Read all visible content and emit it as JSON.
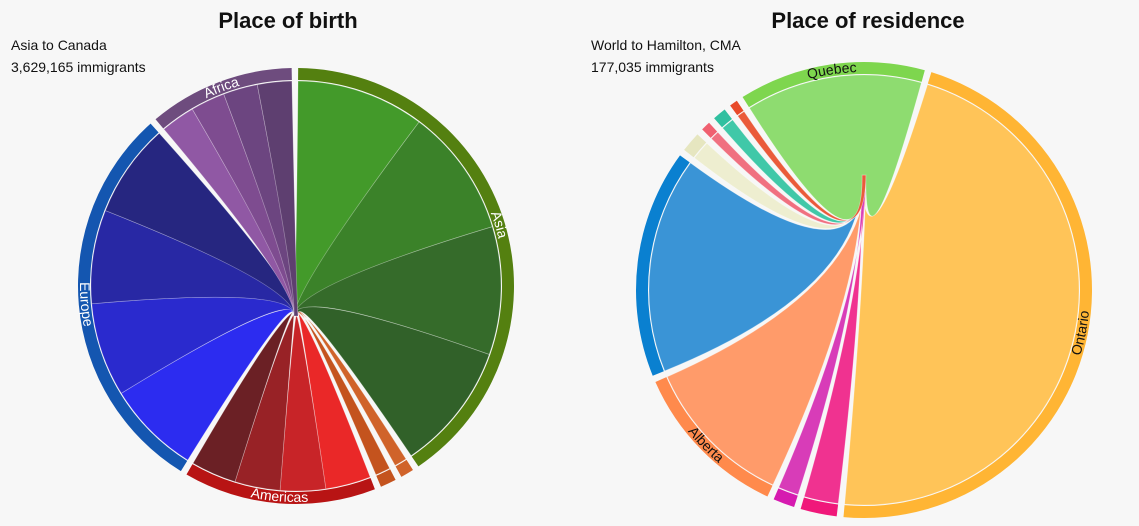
{
  "left_panel": {
    "title": "Place of birth",
    "subtitle_line1": "Asia to Canada",
    "subtitle_line2": "3,629,165 immigrants"
  },
  "right_panel": {
    "title": "Place of residence",
    "subtitle_line1": "World to Hamilton, CMA",
    "subtitle_line2": "177,035 immigrants"
  },
  "chart_data": [
    {
      "type": "chord",
      "title": "Place of birth",
      "subtitle": "Asia to Canada",
      "total_label": "3,629,165 immigrants",
      "focus_group": "Asia",
      "groups": [
        {
          "name": "Asia",
          "color": "#548010",
          "label_color": "#ffffff",
          "share_pct": 41.0,
          "sub_colors": [
            "#439a2a",
            "#3b8229",
            "#356b2a",
            "#316129"
          ]
        },
        {
          "name": "",
          "color": "#d0632a",
          "label_color": "#ffffff",
          "share_pct": 1.0,
          "sub_colors": [
            "#d0632a"
          ]
        },
        {
          "name": "",
          "color": "#c4531e",
          "label_color": "#ffffff",
          "share_pct": 1.2,
          "sub_colors": [
            "#c4531e"
          ]
        },
        {
          "name": "Americas",
          "color": "#b81414",
          "label_color": "#ffffff",
          "share_pct": 14.5,
          "sub_colors": [
            "#ea2828",
            "#c82428",
            "#982226",
            "#6b2025"
          ]
        },
        {
          "name": "Europe",
          "color": "#1456b0",
          "label_color": "#ffffff",
          "share_pct": 30.0,
          "sub_colors": [
            "#2c2cf0",
            "#2a2ace",
            "#2828a4",
            "#262680"
          ]
        },
        {
          "name": "Africa",
          "color": "#6e4c7e",
          "label_color": "#ffffff",
          "share_pct": 11.0,
          "sub_colors": [
            "#9058a4",
            "#7e4c90",
            "#6c4580",
            "#5e3f70"
          ]
        }
      ]
    },
    {
      "type": "chord",
      "title": "Place of residence",
      "subtitle": "World to Hamilton, CMA",
      "total_label": "177,035 immigrants",
      "focus_group": "Ontario",
      "groups": [
        {
          "name": "Ontario",
          "color": "#ffb534",
          "label_color": "#111111",
          "share_pct": 49.0,
          "sub_colors": [
            "#ffc458"
          ]
        },
        {
          "name": "",
          "color": "#f0187a",
          "label_color": "#111111",
          "share_pct": 2.7,
          "sub_colors": [
            "#f03290"
          ]
        },
        {
          "name": "",
          "color": "#d61ab0",
          "label_color": "#111111",
          "share_pct": 1.6,
          "sub_colors": [
            "#d83cb8"
          ]
        },
        {
          "name": "Alberta",
          "color": "#ff8a4c",
          "label_color": "#111111",
          "share_pct": 12.0,
          "sub_colors": [
            "#ff9b6a"
          ]
        },
        {
          "name": "",
          "color": "#0a80d0",
          "label_color": "#111111",
          "share_pct": 17.0,
          "sub_colors": [
            "#3a94d6"
          ]
        },
        {
          "name": "",
          "color": "#e6e6c0",
          "label_color": "#111111",
          "share_pct": 1.5,
          "sub_colors": [
            "#eeeed0"
          ]
        },
        {
          "name": "",
          "color": "#f06070",
          "label_color": "#111111",
          "share_pct": 0.7,
          "sub_colors": [
            "#f07080"
          ]
        },
        {
          "name": "",
          "color": "#30c0a0",
          "label_color": "#111111",
          "share_pct": 1.0,
          "sub_colors": [
            "#40c8a8"
          ]
        },
        {
          "name": "",
          "color": "#e84a2a",
          "label_color": "#111111",
          "share_pct": 0.6,
          "sub_colors": [
            "#ea5a3a"
          ]
        },
        {
          "name": "Quebec",
          "color": "#7ed64e",
          "label_color": "#111111",
          "share_pct": 13.9,
          "sub_colors": [
            "#8edc70"
          ]
        }
      ]
    }
  ]
}
